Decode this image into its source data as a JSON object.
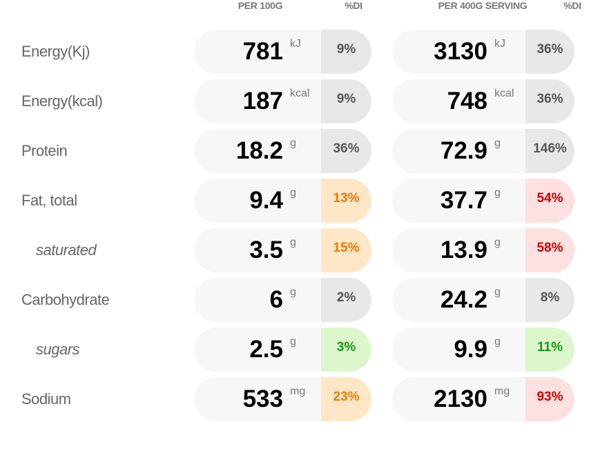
{
  "header": {
    "per100": "PER 100G",
    "di1": "%DI",
    "perServing": "PER 400G SERVING",
    "di2": "%DI"
  },
  "table": {
    "rows": [
      {
        "label": "Energy(Kj)",
        "indent": false,
        "per100": {
          "value": "781",
          "unit": "kJ",
          "di": "9%",
          "rating": "gray"
        },
        "serving": {
          "value": "3130",
          "unit": "kJ",
          "di": "36%",
          "rating": "gray"
        }
      },
      {
        "label": "Energy(kcal)",
        "indent": false,
        "per100": {
          "value": "187",
          "unit": "kcal",
          "di": "9%",
          "rating": "gray"
        },
        "serving": {
          "value": "748",
          "unit": "kcal",
          "di": "36%",
          "rating": "gray"
        }
      },
      {
        "label": "Protein",
        "indent": false,
        "per100": {
          "value": "18.2",
          "unit": "g",
          "di": "36%",
          "rating": "gray"
        },
        "serving": {
          "value": "72.9",
          "unit": "g",
          "di": "146%",
          "rating": "gray"
        }
      },
      {
        "label": "Fat, total",
        "indent": false,
        "per100": {
          "value": "9.4",
          "unit": "g",
          "di": "13%",
          "rating": "orange"
        },
        "serving": {
          "value": "37.7",
          "unit": "g",
          "di": "54%",
          "rating": "red"
        }
      },
      {
        "label": "saturated",
        "indent": true,
        "per100": {
          "value": "3.5",
          "unit": "g",
          "di": "15%",
          "rating": "orange"
        },
        "serving": {
          "value": "13.9",
          "unit": "g",
          "di": "58%",
          "rating": "red"
        }
      },
      {
        "label": "Carbohydrate",
        "indent": false,
        "per100": {
          "value": "6",
          "unit": "g",
          "di": "2%",
          "rating": "gray"
        },
        "serving": {
          "value": "24.2",
          "unit": "g",
          "di": "8%",
          "rating": "gray"
        }
      },
      {
        "label": "sugars",
        "indent": true,
        "per100": {
          "value": "2.5",
          "unit": "g",
          "di": "3%",
          "rating": "green"
        },
        "serving": {
          "value": "9.9",
          "unit": "g",
          "di": "11%",
          "rating": "green"
        }
      },
      {
        "label": "Sodium",
        "indent": false,
        "per100": {
          "value": "533",
          "unit": "mg",
          "di": "23%",
          "rating": "orange"
        },
        "serving": {
          "value": "2130",
          "unit": "mg",
          "di": "93%",
          "rating": "red"
        }
      }
    ]
  }
}
